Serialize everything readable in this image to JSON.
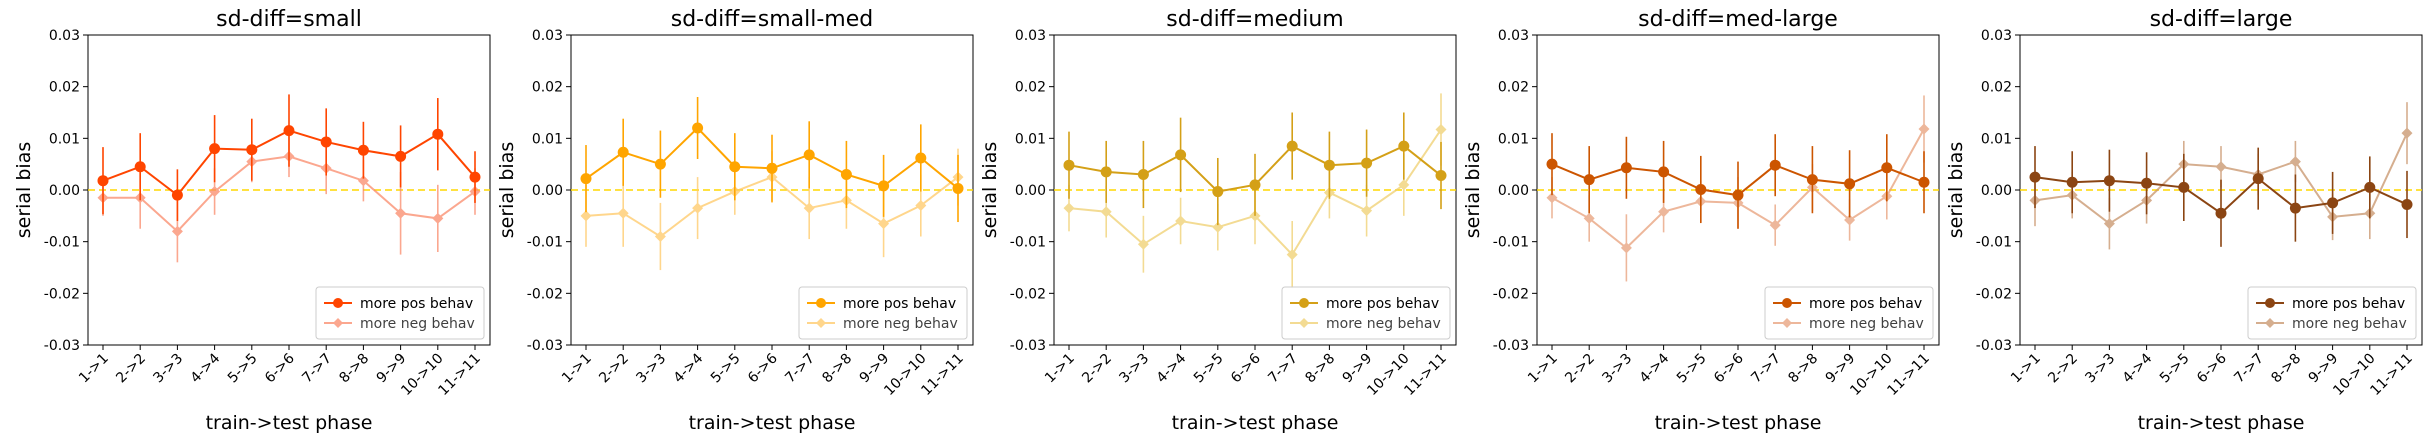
{
  "chart_data": [
    {
      "type": "line",
      "title": "sd-diff=small",
      "xlabel": "train->test phase",
      "ylabel": "serial bias",
      "categories": [
        "1->1",
        "2->2",
        "3->3",
        "4->4",
        "5->5",
        "6->6",
        "7->7",
        "8->8",
        "9->9",
        "10->10",
        "11->11"
      ],
      "ylim": [
        -0.03,
        0.03
      ],
      "yticks": [
        "0.03",
        "0.02",
        "0.01",
        "0.00",
        "-0.01",
        "-0.02",
        "-0.03"
      ],
      "reference_line": 0,
      "legend_position": "lower right",
      "series": [
        {
          "name": "more pos behav",
          "color": "#ff4500",
          "values": [
            0.0018,
            0.0045,
            -0.001,
            0.008,
            0.0078,
            0.0115,
            0.0093,
            0.0077,
            0.0065,
            0.0108,
            0.0025
          ],
          "err": [
            0.0065,
            0.0065,
            0.005,
            0.0065,
            0.006,
            0.007,
            0.0065,
            0.0055,
            0.006,
            0.007,
            0.005
          ]
        },
        {
          "name": "more neg behav",
          "color": "#fa8a6a",
          "values": [
            -0.0015,
            -0.0015,
            -0.008,
            -0.0003,
            0.0055,
            0.0065,
            0.0042,
            0.0018,
            -0.0045,
            -0.0055,
            -0.0003
          ],
          "err": [
            0.0035,
            0.006,
            0.006,
            0.0045,
            0.004,
            0.004,
            0.005,
            0.004,
            0.008,
            0.0065,
            0.0045
          ]
        }
      ]
    },
    {
      "type": "line",
      "title": "sd-diff=small-med",
      "xlabel": "train->test phase",
      "ylabel": "serial bias",
      "categories": [
        "1->1",
        "2->2",
        "3->3",
        "4->4",
        "5->5",
        "6->6",
        "7->7",
        "8->8",
        "9->9",
        "10->10",
        "11->11"
      ],
      "ylim": [
        -0.03,
        0.03
      ],
      "yticks": [
        "0.03",
        "0.02",
        "0.01",
        "0.00",
        "-0.01",
        "-0.02",
        "-0.03"
      ],
      "reference_line": 0,
      "legend_position": "lower right",
      "series": [
        {
          "name": "more pos behav",
          "color": "#ffa500",
          "values": [
            0.0022,
            0.0073,
            0.005,
            0.012,
            0.0045,
            0.0042,
            0.0068,
            0.003,
            0.0008,
            0.0062,
            0.0003
          ],
          "err": [
            0.0065,
            0.0065,
            0.0065,
            0.006,
            0.0065,
            0.0065,
            0.0065,
            0.0065,
            0.006,
            0.0065,
            0.0065
          ]
        },
        {
          "name": "more neg behav",
          "color": "#ffc966",
          "values": [
            -0.005,
            -0.0045,
            -0.009,
            -0.0035,
            -0.0003,
            0.0025,
            -0.0035,
            -0.002,
            -0.0065,
            -0.003,
            0.0025
          ],
          "err": [
            0.006,
            0.0065,
            0.0065,
            0.006,
            0.0045,
            0.005,
            0.006,
            0.0055,
            0.0065,
            0.006,
            0.0055
          ]
        }
      ]
    },
    {
      "type": "line",
      "title": "sd-diff=medium",
      "xlabel": "train->test phase",
      "ylabel": "serial bias",
      "categories": [
        "1->1",
        "2->2",
        "3->3",
        "4->4",
        "5->5",
        "6->6",
        "7->7",
        "8->8",
        "9->9",
        "10->10",
        "11->11"
      ],
      "ylim": [
        -0.03,
        0.03
      ],
      "yticks": [
        "0.03",
        "0.02",
        "0.01",
        "0.00",
        "-0.01",
        "-0.02",
        "-0.03"
      ],
      "reference_line": 0,
      "legend_position": "lower right",
      "series": [
        {
          "name": "more pos behav",
          "color": "#d4a017",
          "values": [
            0.0048,
            0.0035,
            0.003,
            0.0068,
            -0.0003,
            0.001,
            0.0085,
            0.0048,
            0.0052,
            0.0085,
            0.0028
          ],
          "err": [
            0.0065,
            0.006,
            0.0065,
            0.0072,
            0.0065,
            0.006,
            0.0065,
            0.0065,
            0.0065,
            0.0065,
            0.0065
          ]
        },
        {
          "name": "more neg behav",
          "color": "#f0d070",
          "values": [
            -0.0035,
            -0.0042,
            -0.0105,
            -0.006,
            -0.0072,
            -0.005,
            -0.0125,
            -0.0005,
            -0.004,
            0.001,
            0.0117
          ],
          "err": [
            0.0045,
            0.005,
            0.0055,
            0.0045,
            0.0045,
            0.0055,
            0.0065,
            0.005,
            0.005,
            0.006,
            0.007
          ]
        }
      ]
    },
    {
      "type": "line",
      "title": "sd-diff=med-large",
      "xlabel": "train->test phase",
      "ylabel": "serial bias",
      "categories": [
        "1->1",
        "2->2",
        "3->3",
        "4->4",
        "5->5",
        "6->6",
        "7->7",
        "8->8",
        "9->9",
        "10->10",
        "11->11"
      ],
      "ylim": [
        -0.03,
        0.03
      ],
      "yticks": [
        "0.03",
        "0.02",
        "0.01",
        "0.00",
        "-0.01",
        "-0.02",
        "-0.03"
      ],
      "reference_line": 0,
      "legend_position": "lower right",
      "series": [
        {
          "name": "more pos behav",
          "color": "#cc5500",
          "values": [
            0.005,
            0.002,
            0.0043,
            0.0035,
            0.0001,
            -0.001,
            0.0048,
            0.002,
            0.0012,
            0.0043,
            0.0015
          ],
          "err": [
            0.006,
            0.0065,
            0.006,
            0.006,
            0.0065,
            0.0065,
            0.006,
            0.0065,
            0.0065,
            0.0065,
            0.006
          ]
        },
        {
          "name": "more neg behav",
          "color": "#e8a07a",
          "values": [
            -0.0015,
            -0.0055,
            -0.0112,
            -0.0042,
            -0.0022,
            -0.0025,
            -0.0068,
            0.0005,
            -0.0058,
            -0.0012,
            0.0118
          ],
          "err": [
            0.004,
            0.0045,
            0.0065,
            0.004,
            0.004,
            0.005,
            0.004,
            0.0045,
            0.004,
            0.0045,
            0.0065
          ]
        }
      ]
    },
    {
      "type": "line",
      "title": "sd-diff=large",
      "xlabel": "train->test phase",
      "ylabel": "serial bias",
      "categories": [
        "1->1",
        "2->2",
        "3->3",
        "4->4",
        "5->5",
        "6->6",
        "7->7",
        "8->8",
        "9->9",
        "10->10",
        "11->11"
      ],
      "ylim": [
        -0.03,
        0.03
      ],
      "yticks": [
        "0.03",
        "0.02",
        "0.01",
        "0.00",
        "-0.01",
        "-0.02",
        "-0.03"
      ],
      "reference_line": 0,
      "legend_position": "lower right",
      "series": [
        {
          "name": "more pos behav",
          "color": "#8b4513",
          "values": [
            0.0025,
            0.0015,
            0.0018,
            0.0013,
            0.0005,
            -0.0045,
            0.0022,
            -0.0035,
            -0.0025,
            0.0005,
            -0.0028
          ],
          "err": [
            0.006,
            0.006,
            0.006,
            0.006,
            0.0065,
            0.0065,
            0.006,
            0.0065,
            0.006,
            0.006,
            0.0065
          ]
        },
        {
          "name": "more neg behav",
          "color": "#c8946a",
          "values": [
            -0.002,
            -0.001,
            -0.0065,
            -0.002,
            0.005,
            0.0045,
            0.003,
            0.0055,
            -0.0052,
            -0.0045,
            0.011
          ],
          "err": [
            0.005,
            0.0045,
            0.005,
            0.0045,
            0.0045,
            0.004,
            0.004,
            0.004,
            0.0045,
            0.005,
            0.006
          ]
        }
      ]
    }
  ]
}
